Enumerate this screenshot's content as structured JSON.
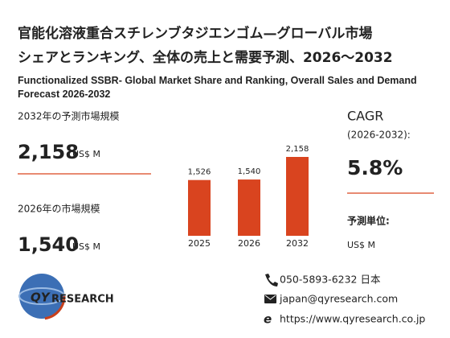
{
  "header": {
    "title_lines": [
      "官能化溶液重合スチレンブタジエンゴム—グローバル市場",
      "シェアとランキング、全体の売上と需要予測、2026～2032"
    ],
    "subtitle": "Functionalized SSBR- Global Market Share and Ranking, Overall Sales and Demand Forecast 2026-2032"
  },
  "left_stats": [
    {
      "label": "2032年の予測市場規模",
      "value": "2,158",
      "unit": "US$ M"
    },
    {
      "label": "2026年の市場規模",
      "value": "1,540",
      "unit": "US$ M"
    }
  ],
  "right_stats": {
    "cagr_label": "CAGR",
    "cagr_period": "(2026-2032):",
    "cagr_value": "5.8%",
    "unit_label": "予測単位:",
    "unit": "US$ M"
  },
  "chart_data": {
    "type": "bar",
    "categories": [
      "2025",
      "2026",
      "2032"
    ],
    "values": [
      1526,
      1540,
      2158
    ],
    "value_labels": [
      "1,526",
      "1,540",
      "2,158"
    ],
    "color": "#d9441f"
  },
  "logo": {
    "text_a": "QY",
    "text_b": "RESEARCH"
  },
  "contact": {
    "phone": "050-5893-6232 日本",
    "email": "japan@qyresearch.com",
    "web": "https://www.qyresearch.co.jp"
  }
}
